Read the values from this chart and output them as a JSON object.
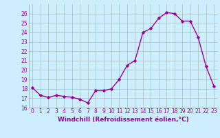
{
  "x": [
    0,
    1,
    2,
    3,
    4,
    5,
    6,
    7,
    8,
    9,
    10,
    11,
    12,
    13,
    14,
    15,
    16,
    17,
    18,
    19,
    20,
    21,
    22,
    23
  ],
  "y": [
    18.1,
    17.3,
    17.1,
    17.3,
    17.2,
    17.1,
    16.9,
    16.5,
    17.8,
    17.8,
    18.0,
    19.0,
    20.5,
    21.0,
    24.0,
    24.4,
    25.5,
    26.1,
    26.0,
    25.2,
    25.2,
    23.5,
    20.4,
    18.3
  ],
  "line_color": "#990099",
  "marker": "D",
  "marker_size": 1.8,
  "bg_color": "#cceeff",
  "grid_color": "#aabbbb",
  "xlabel": "Windchill (Refroidissement éolien,°C)",
  "xlabel_color": "#990099",
  "tick_color": "#990099",
  "ylim": [
    16,
    27
  ],
  "xlim": [
    -0.5,
    23.5
  ],
  "yticks": [
    16,
    17,
    18,
    19,
    20,
    21,
    22,
    23,
    24,
    25,
    26
  ],
  "xticks": [
    0,
    1,
    2,
    3,
    4,
    5,
    6,
    7,
    8,
    9,
    10,
    11,
    12,
    13,
    14,
    15,
    16,
    17,
    18,
    19,
    20,
    21,
    22,
    23
  ],
  "xtick_labels": [
    "0",
    "1",
    "2",
    "3",
    "4",
    "5",
    "6",
    "7",
    "8",
    "9",
    "10",
    "11",
    "12",
    "13",
    "14",
    "15",
    "16",
    "17",
    "18",
    "19",
    "20",
    "21",
    "22",
    "23"
  ],
  "font_size_ticks": 5.5,
  "font_size_xlabel": 6.5,
  "linewidth": 1.0
}
